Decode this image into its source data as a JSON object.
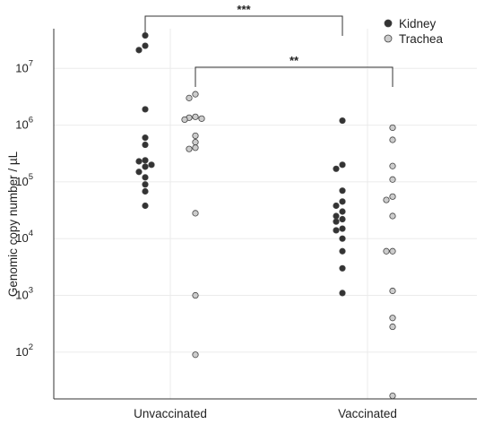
{
  "chart_data": {
    "type": "scatter",
    "ylabel": "Genomic copy number / µL",
    "yscale": "log",
    "ylim": [
      15,
      50000000
    ],
    "categories": [
      "Unvaccinated",
      "Vaccinated"
    ],
    "y_ticks": [
      {
        "value": 100,
        "base": "10",
        "exp": "2"
      },
      {
        "value": 1000,
        "base": "10",
        "exp": "3"
      },
      {
        "value": 10000,
        "base": "10",
        "exp": "4"
      },
      {
        "value": 100000,
        "base": "10",
        "exp": "5"
      },
      {
        "value": 1000000,
        "base": "10",
        "exp": "6"
      },
      {
        "value": 10000000,
        "base": "10",
        "exp": "7"
      }
    ],
    "grid": true,
    "legend_position": "top-right",
    "series": [
      {
        "name": "Kidney",
        "color": "#333333",
        "points": [
          {
            "category": "Unvaccinated",
            "values": [
              38000000,
              25000000,
              21000000,
              1900000,
              600000,
              450000,
              240000,
              230000,
              200000,
              185000,
              150000,
              120000,
              90000,
              68000,
              38000
            ]
          },
          {
            "category": "Vaccinated",
            "values": [
              1200000,
              200000,
              170000,
              70000,
              45000,
              38000,
              30000,
              25000,
              22000,
              20000,
              15000,
              14000,
              10000,
              6000,
              3000,
              1100
            ]
          }
        ]
      },
      {
        "name": "Trachea",
        "color": "#cccccc",
        "points": [
          {
            "category": "Unvaccinated",
            "values": [
              3500000,
              3000000,
              1400000,
              1350000,
              1300000,
              1250000,
              650000,
              500000,
              400000,
              380000,
              28000,
              1000,
              90
            ]
          },
          {
            "category": "Vaccinated",
            "values": [
              900000,
              550000,
              190000,
              110000,
              55000,
              48000,
              25000,
              6000,
              6000,
              1200,
              400,
              280,
              17
            ]
          }
        ]
      }
    ],
    "annotations": [
      {
        "text": "***",
        "from": "Unvaccinated – Kidney",
        "to": "Vaccinated – Kidney"
      },
      {
        "text": "**",
        "from": "Unvaccinated – Trachea",
        "to": "Vaccinated – Trachea"
      }
    ]
  }
}
